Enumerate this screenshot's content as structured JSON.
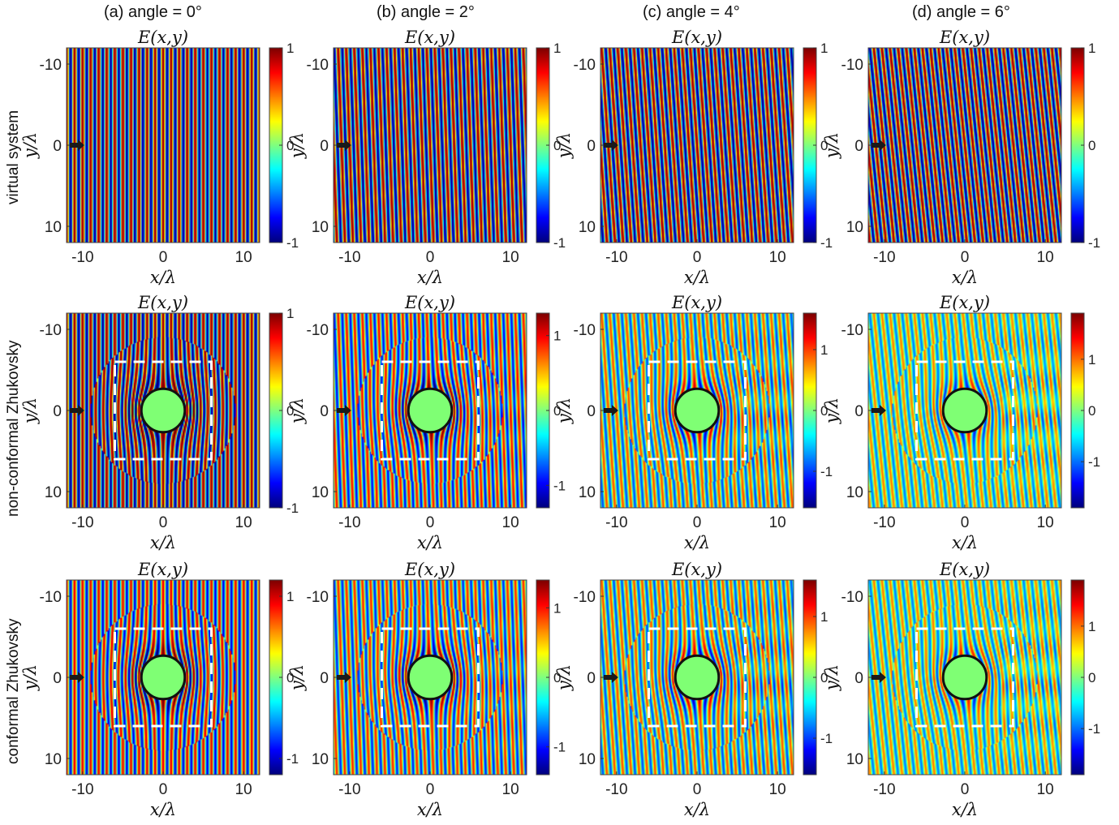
{
  "figure": {
    "column_titles": [
      "(a) angle = 0°",
      "(b) angle = 2°",
      "(c) angle = 4°",
      "(d) angle = 6°"
    ],
    "row_titles": [
      "virtual system",
      "non-conformal Zhukovsky",
      "conformal Zhukovsky"
    ]
  },
  "chart_data": {
    "type": "heatmap",
    "panel_title": "E(x,y)",
    "xlabel": "x/λ",
    "ylabel": "y/λ",
    "xlim": [
      -12,
      12
    ],
    "ylim": [
      -12,
      12
    ],
    "y_reversed": true,
    "xticks": [
      -10,
      0,
      10
    ],
    "yticks": [
      -10,
      0,
      10
    ],
    "colormap": "jet",
    "angles_deg": [
      0,
      2,
      4,
      6
    ],
    "incidence_marker": {
      "x": -11,
      "y": 0,
      "color": "#1a1a1a"
    },
    "cloak_region": {
      "xlim": [
        -6,
        6
      ],
      "ylim": [
        -6,
        6
      ],
      "style": "white dashed"
    },
    "scatterer": {
      "radius": 2.7,
      "fill": "#7fff74",
      "edge": "#111111"
    },
    "rows": [
      {
        "name": "virtual system",
        "panels": [
          {
            "angle": 0,
            "clim": [
              -1,
              1
            ],
            "cbar_ticks": [
              -1,
              0,
              1
            ],
            "has_cloak": false
          },
          {
            "angle": 2,
            "clim": [
              -1,
              1
            ],
            "cbar_ticks": [
              -1,
              0,
              1
            ],
            "has_cloak": false
          },
          {
            "angle": 4,
            "clim": [
              -1,
              1
            ],
            "cbar_ticks": [
              -1,
              0,
              1
            ],
            "has_cloak": false
          },
          {
            "angle": 6,
            "clim": [
              -1,
              1
            ],
            "cbar_ticks": [
              -1,
              0,
              1
            ],
            "has_cloak": false
          }
        ]
      },
      {
        "name": "non-conformal Zhukovsky",
        "panels": [
          {
            "angle": 0,
            "clim": [
              -1,
              1
            ],
            "cbar_ticks": [
              -1,
              0,
              1
            ],
            "has_cloak": true
          },
          {
            "angle": 2,
            "clim": [
              -1.3,
              1.3
            ],
            "cbar_ticks": [
              -1,
              0,
              1
            ],
            "has_cloak": true
          },
          {
            "angle": 4,
            "clim": [
              -1.6,
              1.6
            ],
            "cbar_ticks": [
              -1,
              0,
              1
            ],
            "has_cloak": true
          },
          {
            "angle": 6,
            "clim": [
              -1.9,
              1.9
            ],
            "cbar_ticks": [
              -1,
              0,
              1
            ],
            "has_cloak": true
          }
        ]
      },
      {
        "name": "conformal Zhukovsky",
        "panels": [
          {
            "angle": 0,
            "clim": [
              -1.2,
              1.2
            ],
            "cbar_ticks": [
              -1,
              0,
              1
            ],
            "has_cloak": true
          },
          {
            "angle": 2,
            "clim": [
              -1.4,
              1.4
            ],
            "cbar_ticks": [
              -1,
              0,
              1
            ],
            "has_cloak": true
          },
          {
            "angle": 4,
            "clim": [
              -1.6,
              1.6
            ],
            "cbar_ticks": [
              -1,
              0,
              1
            ],
            "has_cloak": true
          },
          {
            "angle": 6,
            "clim": [
              -1.9,
              1.9
            ],
            "cbar_ticks": [
              -1,
              0,
              1
            ],
            "has_cloak": true
          }
        ]
      }
    ]
  }
}
